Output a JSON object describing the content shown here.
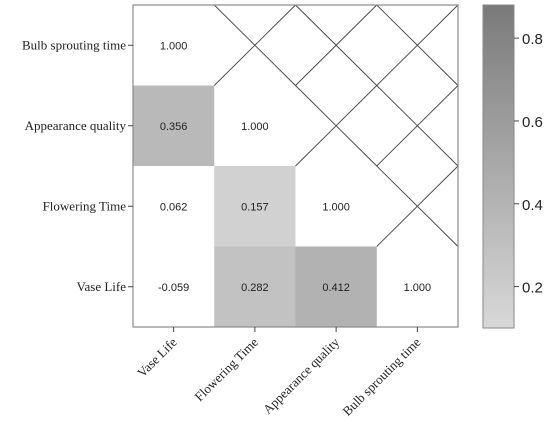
{
  "chart_data": {
    "type": "heatmap",
    "title": "",
    "rows": [
      "Bulb sprouting time",
      "Appearance quality",
      "Flowering Time",
      "Vase Life"
    ],
    "columns": [
      "Vase Life",
      "Flowering Time",
      "Appearance quality",
      "Bulb sprouting time"
    ],
    "cells": [
      [
        "1.000",
        null,
        null,
        null
      ],
      [
        "0.356",
        "1.000",
        null,
        null
      ],
      [
        "0.062",
        "0.157",
        "1.000",
        null
      ],
      [
        "-0.059",
        "0.282",
        "0.412",
        "1.000"
      ]
    ],
    "upper_triangle": "crossed",
    "colorbar": {
      "min": 0.1,
      "max": 0.88,
      "ticks": [
        "0.2",
        "0.4",
        "0.6",
        "0.8"
      ],
      "low_color": "#d8d8d8",
      "high_color": "#7a7a7a"
    },
    "shaded_min": 0.1
  }
}
